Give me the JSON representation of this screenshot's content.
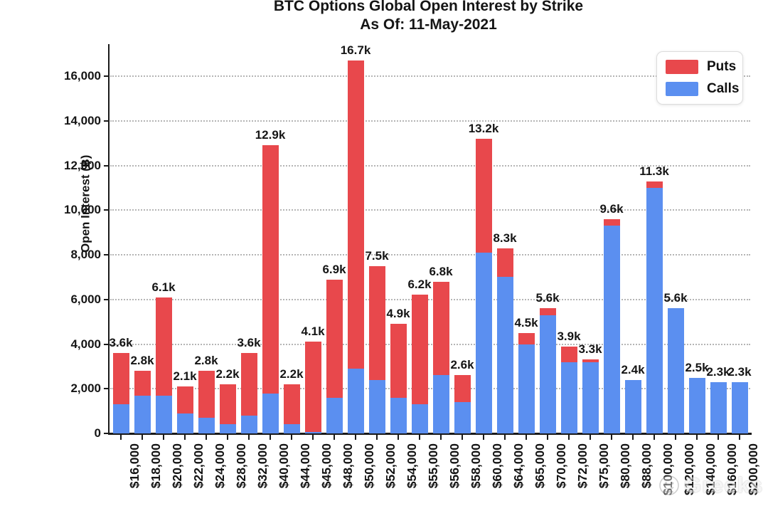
{
  "title": {
    "line1": "BTC Options Global Open Interest by Strike",
    "line2": "As Of: 11-May-2021"
  },
  "y_axis": {
    "label": "Open Interest (฿)",
    "tick_labels": [
      "0",
      "2,000",
      "4,000",
      "6,000",
      "8,000",
      "10,000",
      "12,000",
      "14,000",
      "16,000"
    ]
  },
  "legend": {
    "items": [
      {
        "label": "Puts",
        "color": "#e8484c"
      },
      {
        "label": "Calls",
        "color": "#5b8ff0"
      }
    ]
  },
  "watermark": {
    "logo": "smiley-circle-icon",
    "text": "Greeks"
  },
  "chart_data": {
    "type": "bar",
    "stacked": true,
    "orientation": "vertical",
    "title": "BTC Options Global Open Interest by Strike — As Of: 11-May-2021",
    "xlabel": "",
    "ylabel": "Open Interest (฿)",
    "ylim": [
      0,
      17500
    ],
    "grid": "horizontal dotted every 2000",
    "legend_position": "top-right",
    "categories": [
      "$16,000",
      "$18,000",
      "$20,000",
      "$22,000",
      "$24,000",
      "$28,000",
      "$32,000",
      "$40,000",
      "$44,000",
      "$45,000",
      "$48,000",
      "$50,000",
      "$52,000",
      "$54,000",
      "$55,000",
      "$56,000",
      "$58,000",
      "$60,000",
      "$64,000",
      "$65,000",
      "$70,000",
      "$72,000",
      "$75,000",
      "$80,000",
      "$88,000",
      "$100,000",
      "$120,000",
      "$140,000",
      "$160,000",
      "$200,000"
    ],
    "series": [
      {
        "name": "Calls",
        "color": "#5b8ff0",
        "values": [
          1300,
          1700,
          1700,
          900,
          700,
          400,
          800,
          1800,
          400,
          50,
          1600,
          2900,
          2400,
          1600,
          1300,
          2600,
          1400,
          8100,
          7000,
          4000,
          5300,
          3200,
          3200,
          9300,
          2400,
          11000,
          5600,
          2500,
          2300,
          2300
        ]
      },
      {
        "name": "Puts",
        "color": "#e8484c",
        "values": [
          2300,
          1100,
          4400,
          1200,
          2100,
          1800,
          2800,
          11100,
          1800,
          4050,
          5300,
          13800,
          5100,
          3300,
          4900,
          4200,
          1200,
          5100,
          1300,
          500,
          300,
          700,
          100,
          300,
          0,
          300,
          0,
          0,
          0,
          0
        ]
      }
    ],
    "bar_total_labels": [
      "3.6k",
      "2.8k",
      "6.1k",
      "2.1k",
      "2.8k",
      "2.2k",
      "3.6k",
      "12.9k",
      "2.2k",
      "4.1k",
      "6.9k",
      "16.7k",
      "7.5k",
      "4.9k",
      "6.2k",
      "6.8k",
      "2.6k",
      "13.2k",
      "8.3k",
      "4.5k",
      "5.6k",
      "3.9k",
      "3.3k",
      "9.6k",
      "2.4k",
      "11.3k",
      "5.6k",
      "2.5k",
      "2.3k",
      "2.3k"
    ]
  }
}
